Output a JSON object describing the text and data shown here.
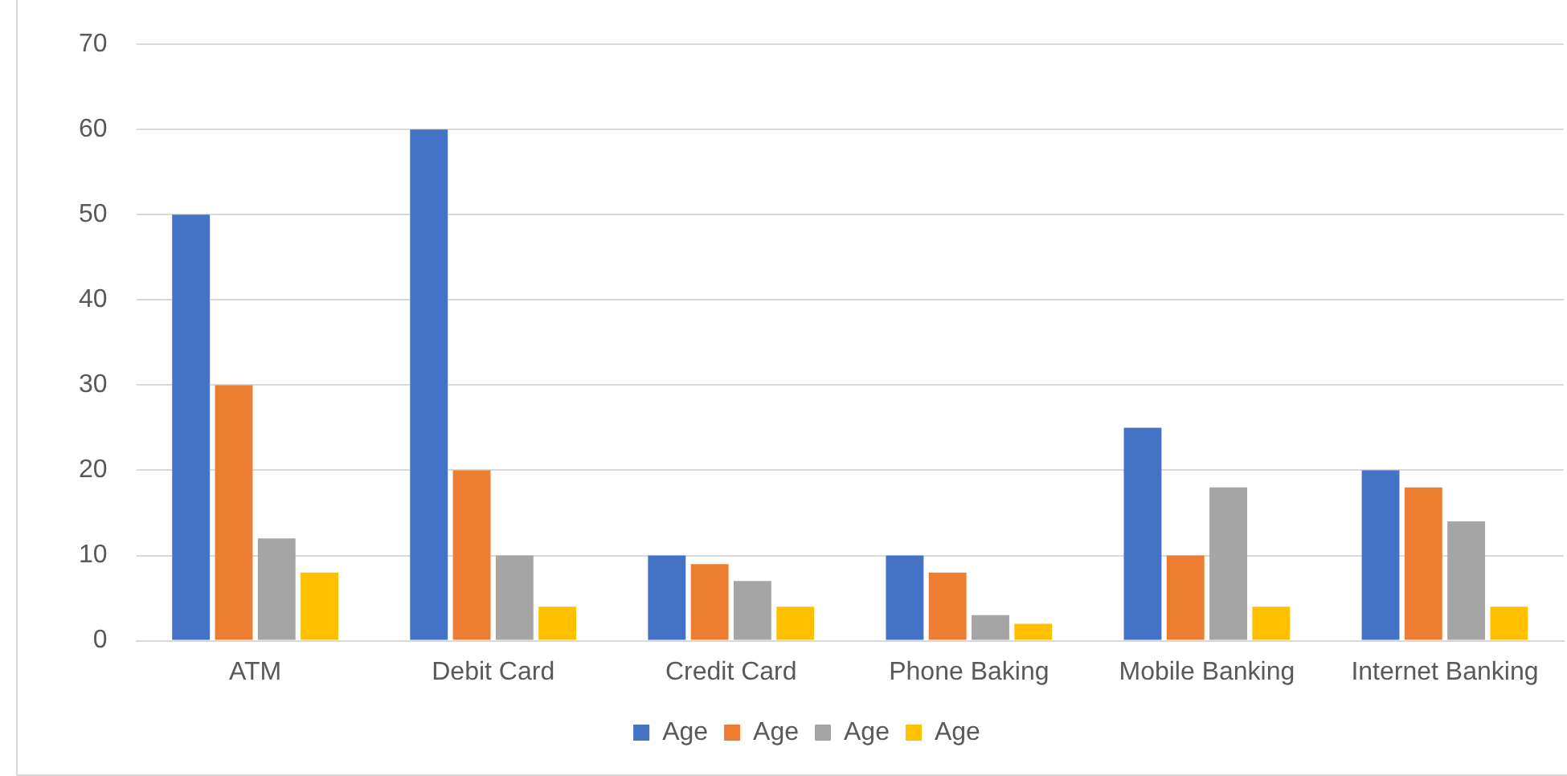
{
  "chart_data": {
    "type": "bar",
    "categories": [
      "ATM",
      "Debit Card",
      "Credit Card",
      "Phone Baking",
      "Mobile Banking",
      "Internet Banking"
    ],
    "series": [
      {
        "name": "Age",
        "color": "#4472c4",
        "values": [
          50,
          60,
          10,
          10,
          25,
          20
        ]
      },
      {
        "name": "Age",
        "color": "#ed7d31",
        "values": [
          30,
          20,
          9,
          8,
          10,
          18
        ]
      },
      {
        "name": "Age",
        "color": "#a5a5a5",
        "values": [
          12,
          10,
          7,
          3,
          18,
          14
        ]
      },
      {
        "name": "Age",
        "color": "#ffc000",
        "values": [
          8,
          4,
          4,
          2,
          4,
          4
        ]
      }
    ],
    "ylim": [
      0,
      70
    ],
    "yticks": [
      0,
      10,
      20,
      30,
      40,
      50,
      60,
      70
    ],
    "grid": "y",
    "legend": "bottom"
  }
}
